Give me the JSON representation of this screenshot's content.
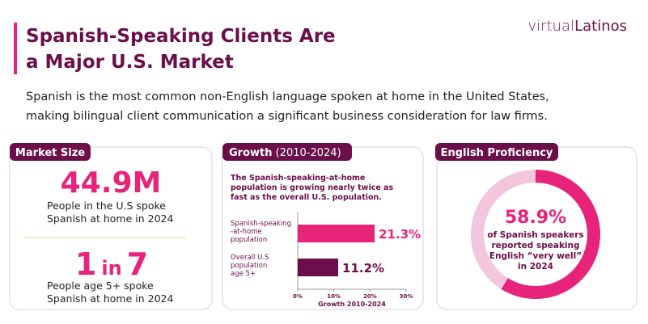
{
  "brand": {
    "prefix": "virtual",
    "name": "Latinos"
  },
  "header": {
    "title_lines": [
      "Spanish-Speaking Clients Are",
      "a Major U.S. Market"
    ],
    "subtitle_lines": [
      "Spanish is the most common non-English language spoken at home in the United States,",
      "making bilingual client communication a significant business consideration for law firms."
    ]
  },
  "market_size": {
    "label": "Market Size",
    "stat1": "44.9M",
    "stat1_lines": [
      "People in the U.S spoke",
      "Spanish at home in 2024"
    ],
    "stat2": [
      "1",
      "in",
      "7"
    ],
    "stat2_lines": [
      "People age 5+ spoke",
      "Spanish at home in 2024"
    ]
  },
  "chart_data": [
    {
      "type": "bar",
      "title": "Growth",
      "title_suffix": "(2010-2024)",
      "note_lines": [
        "The Spanish-speaking-at-home",
        "population is growing nearly twice as",
        "fast as the overall U.S. population."
      ],
      "categories": [
        [
          "Spanish-speaking",
          "-at-home",
          "population"
        ],
        [
          "Overall U.S",
          "population",
          "age 5+"
        ]
      ],
      "values": [
        21.3,
        11.2
      ],
      "value_labels": [
        "21.3%",
        "11.2%"
      ],
      "colors": [
        "#e8237a",
        "#6b0f4a"
      ],
      "xlim": [
        0,
        30
      ],
      "xticks": [
        {
          "value": 0,
          "label": "0%"
        },
        {
          "value": 10,
          "label": "10%"
        },
        {
          "value": 20,
          "label": "20%"
        },
        {
          "value": 30,
          "label": "30%"
        }
      ],
      "xlabel": "Growth 2010-2024"
    },
    {
      "type": "donut",
      "title": "English Proficiency",
      "values": [
        58.9
      ],
      "value_labels": [
        "58.9%"
      ],
      "text_lines": [
        "of Spanish speakers",
        "reported speaking",
        "English “very well”",
        "in 2024"
      ],
      "color": "#e8237a",
      "track_color": "#f3c6dc"
    }
  ]
}
